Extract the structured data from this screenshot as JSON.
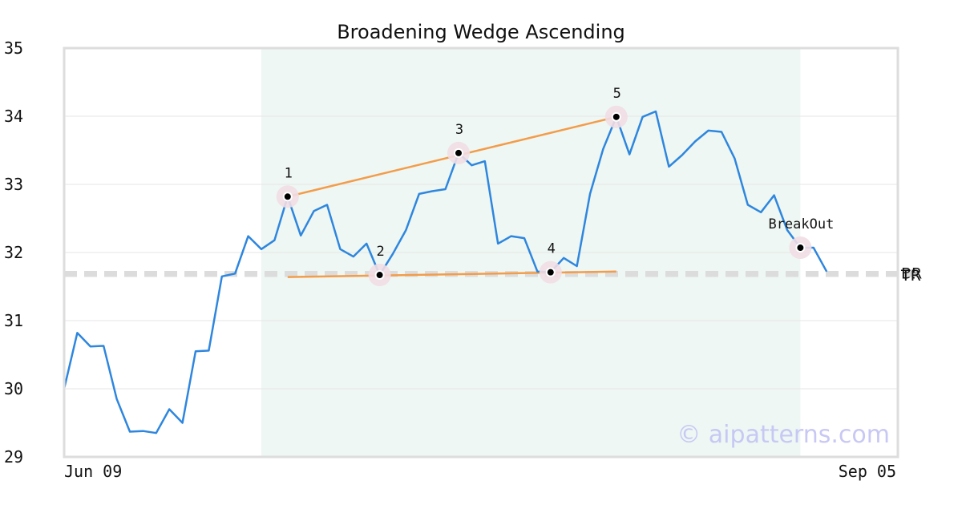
{
  "chart_data": {
    "type": "line",
    "title": "Broadening Wedge Ascending",
    "watermark": "© aipatterns.com",
    "x_labels": {
      "start": "Jun 09",
      "end": "Sep 05"
    },
    "ylim": [
      29,
      35
    ],
    "yticks": [
      29,
      30,
      31,
      32,
      33,
      34,
      35
    ],
    "grid": true,
    "colors": {
      "price": "#2e86de",
      "trend": "#f39c4a",
      "zone": "#eef7f3",
      "level": "#dcdcdc",
      "marker_halo": "#f1dde4"
    },
    "series": [
      {
        "values": [
          30.0,
          30.82,
          30.62,
          30.63,
          29.85,
          29.37,
          29.38,
          29.35,
          29.7,
          29.5,
          30.55,
          30.56,
          31.65,
          31.69,
          32.24,
          32.05,
          32.18,
          32.82,
          32.25,
          32.61,
          32.7,
          32.05,
          31.94,
          32.13,
          31.67,
          31.98,
          32.33,
          32.86,
          32.9,
          32.93,
          33.46,
          33.28,
          33.34,
          32.13,
          32.24,
          32.21,
          31.72,
          31.71,
          31.92,
          31.8,
          32.86,
          33.52,
          33.99,
          33.44,
          33.99,
          34.07,
          33.26,
          33.43,
          33.63,
          33.79,
          33.77,
          33.38,
          32.7,
          32.59,
          32.84,
          32.33,
          32.07,
          32.07,
          31.72
        ]
      }
    ],
    "highlight_zone": {
      "from_index": 15,
      "to_index": 56
    },
    "trendlines": [
      {
        "from": {
          "index": 17,
          "value": 32.82
        },
        "to": {
          "index": 42,
          "value": 33.99
        }
      },
      {
        "from": {
          "index": 17,
          "value": 31.64
        },
        "to": {
          "index": 42,
          "value": 31.72
        }
      }
    ],
    "points": [
      {
        "label": "1",
        "index": 17,
        "value": 32.82
      },
      {
        "label": "2",
        "index": 24,
        "value": 31.67
      },
      {
        "label": "3",
        "index": 30,
        "value": 33.46
      },
      {
        "label": "4",
        "index": 37,
        "value": 31.71
      },
      {
        "label": "5",
        "index": 42,
        "value": 33.99
      },
      {
        "label": "BreakOut",
        "index": 56,
        "value": 32.07
      }
    ],
    "levels": [
      {
        "label": "BR",
        "value": 31.7
      },
      {
        "label": "TR",
        "value": 31.67
      }
    ]
  }
}
